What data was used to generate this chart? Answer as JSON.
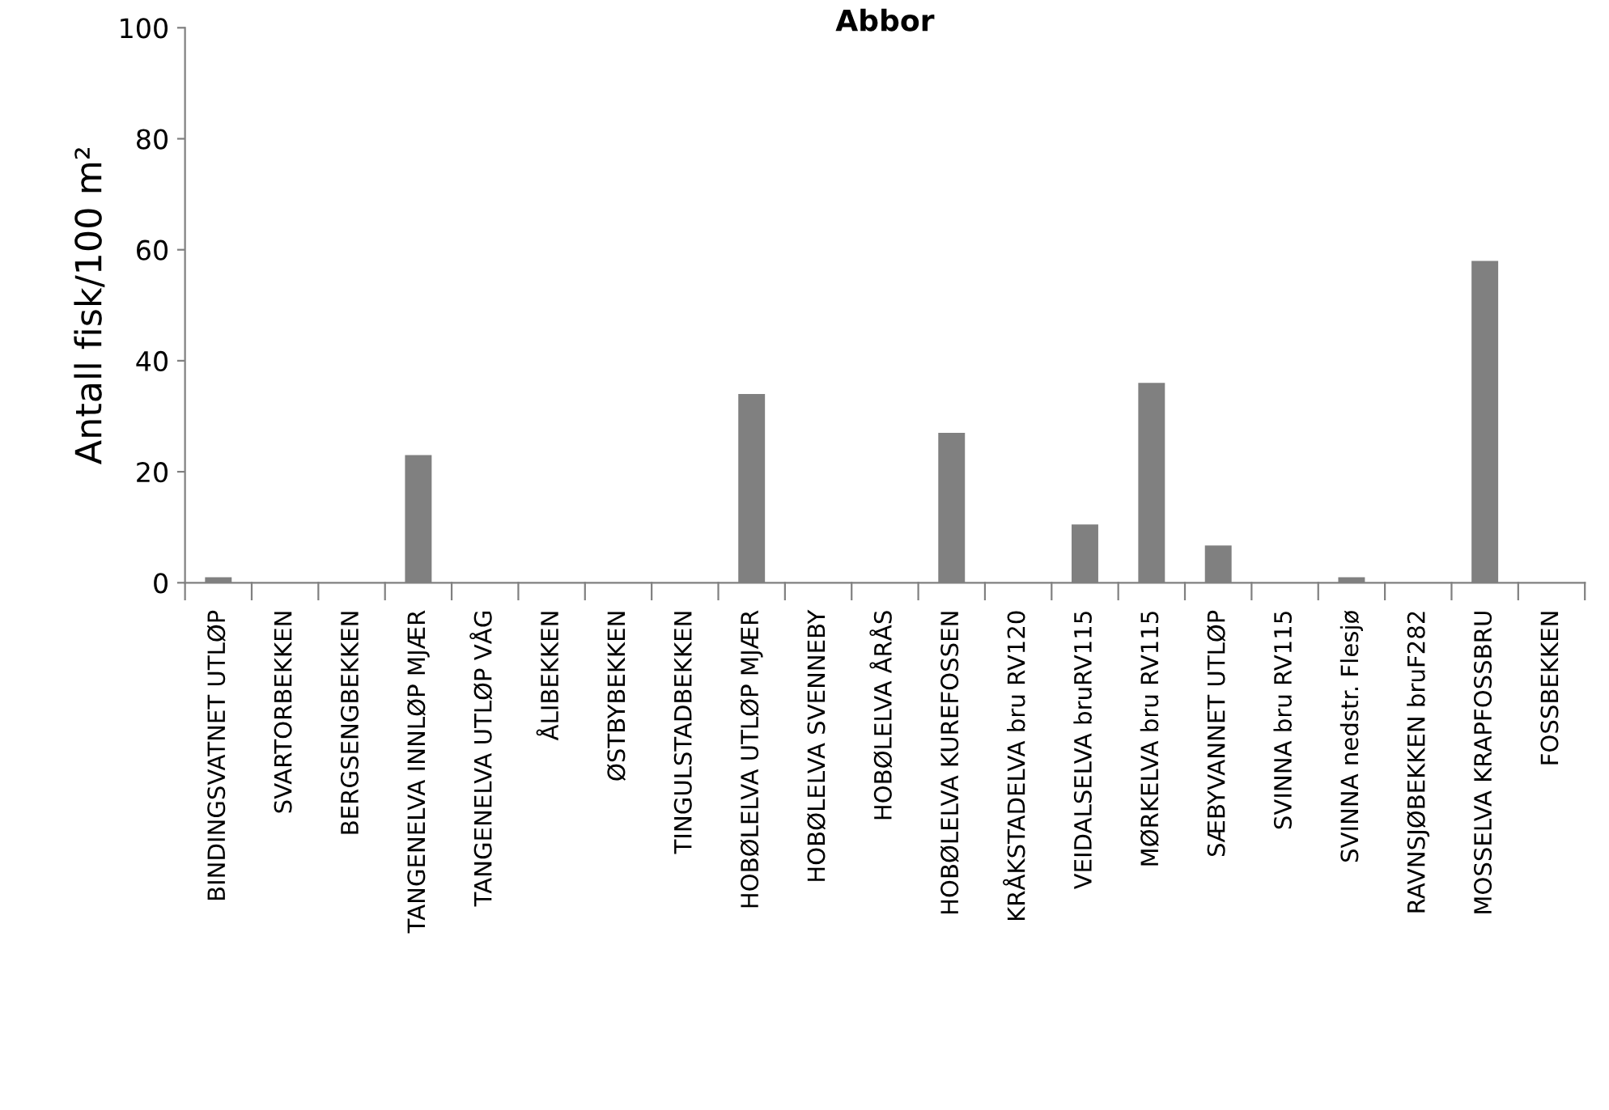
{
  "chart_data": {
    "type": "bar",
    "title": "Abbor",
    "ylabel": "Antall fisk/100 m²",
    "categories": [
      "BINDINGSVATNET UTLØP",
      "SVARTORBEKKEN",
      "BERGSENGBEKKEN",
      "TANGENELVA INNLØP MJÆR",
      "TANGENELVA UTLØP VÅG",
      "ÅLIBEKKEN",
      "ØSTBYBEKKEN",
      "TINGULSTADBEKKEN",
      "HOBØLELVA UTLØP MJÆR",
      "HOBØLELVA SVENNEBY",
      "HOBØLELVA ÅRÅS",
      "HOBØLELVA KUREFOSSEN",
      "KRÅKSTADELVA bru RV120",
      "VEIDALSELVA bruRV115",
      "MØRKELVA bru RV115",
      "SÆBYVANNET UTLØP",
      "SVINNA bru RV115",
      "SVINNA nedstr. Flesjø",
      "RAVNSJØBEKKEN bruF282",
      "MOSSELVA KRAPFOSSBRU",
      "FOSSBEKKEN"
    ],
    "values": [
      1,
      0,
      0,
      23,
      0,
      0,
      0,
      0,
      34,
      0,
      0,
      27,
      0,
      10.5,
      36,
      6.7,
      0,
      1,
      0,
      58,
      0
    ],
    "color": "#808080",
    "ylim": [
      0,
      100
    ],
    "yticks": [
      0,
      20,
      40,
      60,
      80,
      100
    ],
    "grid": false,
    "legend": false
  }
}
